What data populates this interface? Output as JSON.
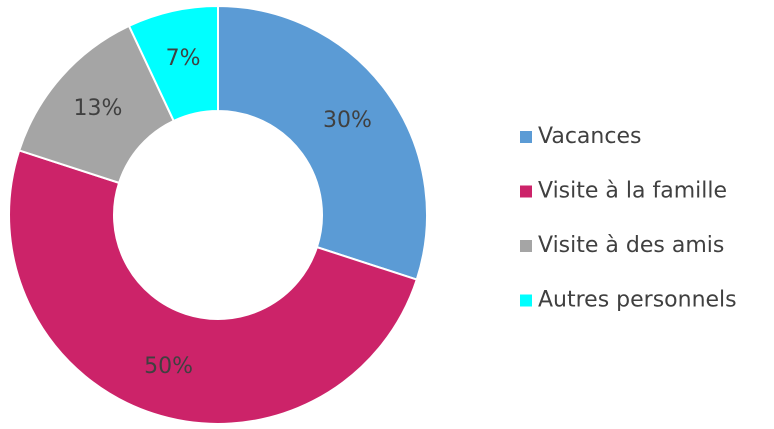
{
  "chart_data": {
    "type": "donut",
    "categories": [
      "Vacances",
      "Visite à la famille",
      "Visite à des amis",
      "Autres personnels"
    ],
    "values": [
      30,
      50,
      13,
      7
    ],
    "value_labels": [
      "30%",
      "50%",
      "13%",
      "7%"
    ],
    "colors": [
      "#5b9bd5",
      "#cc2369",
      "#a5a5a5",
      "#00ffff"
    ],
    "legend": "right"
  }
}
